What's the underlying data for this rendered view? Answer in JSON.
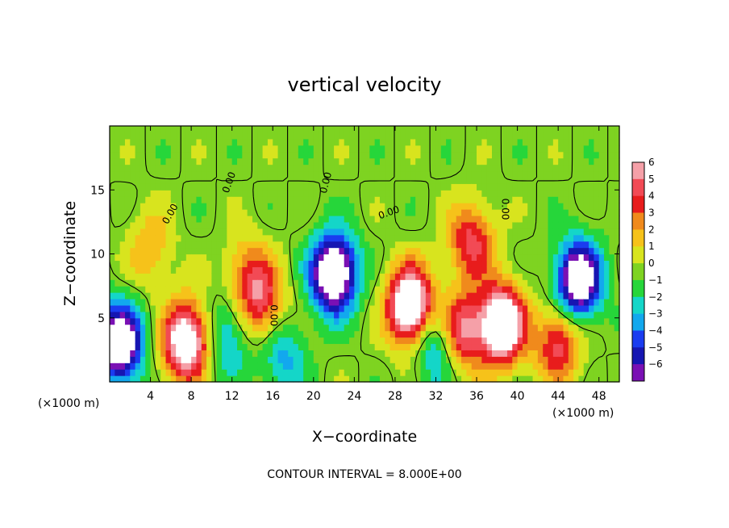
{
  "chart_data": {
    "type": "heatmap",
    "title": "vertical velocity",
    "xlabel": "X−coordinate",
    "ylabel": "Z−coordinate",
    "x_unit": "(×1000 m)",
    "z_unit": "(×1000 m)",
    "xlim": [
      0,
      50
    ],
    "ylim": [
      0,
      20
    ],
    "x_ticks": [
      "4",
      "8",
      "12",
      "16",
      "20",
      "24",
      "28",
      "32",
      "36",
      "40",
      "44",
      "48"
    ],
    "y_ticks": [
      "5",
      "10",
      "15"
    ],
    "contour_interval_text": "CONTOUR INTERVAL = 8.000E+00",
    "zero_contour_label": "0.00",
    "colorbar": {
      "labels": [
        "6",
        "5",
        "4",
        "3",
        "2",
        "1",
        "0",
        "−1",
        "−2",
        "−3",
        "−4",
        "−5",
        "−6"
      ],
      "levels": [
        6,
        5,
        4,
        3,
        2,
        1,
        0,
        -1,
        -2,
        -3,
        -4,
        -5,
        -6
      ],
      "colors": [
        "#f5a0a8",
        "#f24a55",
        "#e81c1c",
        "#f08a1c",
        "#f6c21a",
        "#d8e41e",
        "#7ed321",
        "#26d63a",
        "#14d6c8",
        "#12a8ee",
        "#1a3cf0",
        "#1616b2",
        "#7a10b4"
      ]
    },
    "updrafts": [
      {
        "x": 7.5,
        "z": 3.2,
        "peak": 9
      },
      {
        "x": 13.5,
        "z": 8.5,
        "peak": 3
      },
      {
        "x": 15.0,
        "z": 6.2,
        "peak": 4.5
      },
      {
        "x": 29.5,
        "z": 6.0,
        "peak": 10
      },
      {
        "x": 38.5,
        "z": 4.5,
        "peak": 10
      },
      {
        "x": 35.5,
        "z": 11.0,
        "peak": 5
      },
      {
        "x": 34.5,
        "z": 4.0,
        "peak": 6
      },
      {
        "x": 4.0,
        "z": 10.5,
        "peak": 2.5
      },
      {
        "x": 44.0,
        "z": 3.0,
        "peak": 5
      }
    ],
    "downdrafts": [
      {
        "x": 1.0,
        "z": 3.0,
        "peak": -9
      },
      {
        "x": 22.0,
        "z": 8.5,
        "peak": -10
      },
      {
        "x": 46.0,
        "z": 8.0,
        "peak": -9
      },
      {
        "x": 32.0,
        "z": 3.0,
        "peak": -4
      },
      {
        "x": 17.0,
        "z": 2.0,
        "peak": -3
      },
      {
        "x": 11.5,
        "z": 3.5,
        "peak": -3
      }
    ]
  }
}
